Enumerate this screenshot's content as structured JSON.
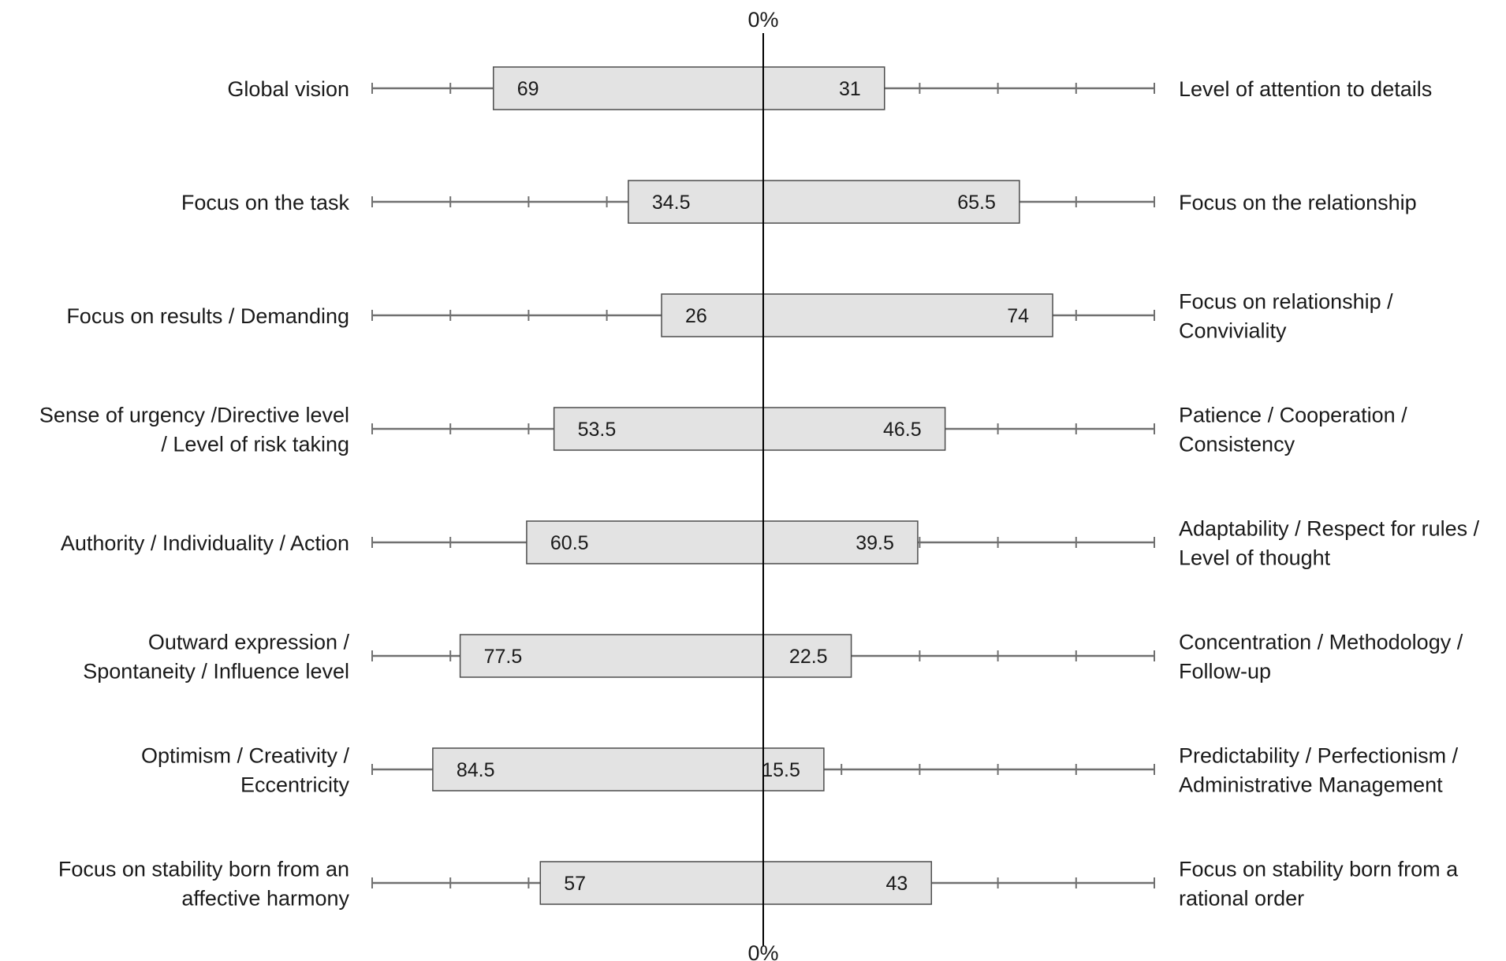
{
  "chart_data": {
    "type": "bar",
    "orientation": "diverging-horizontal",
    "center_label_top": "0%",
    "center_label_bottom": "0%",
    "scale": {
      "min": -100,
      "max": 100,
      "tick_step": 20
    },
    "grid": false,
    "colors": {
      "bar_fill": "#e3e3e3",
      "bar_stroke": "#4d4d4d",
      "axis_line": "#707070",
      "center_line": "#000000",
      "text": "#1a1a1a"
    },
    "rows": [
      {
        "left_label": [
          "Global vision"
        ],
        "right_label": [
          "Level of attention to details"
        ],
        "left_value": 69,
        "right_value": 31,
        "left_text": "69",
        "right_text": "31"
      },
      {
        "left_label": [
          "Focus on the task"
        ],
        "right_label": [
          "Focus on the relationship"
        ],
        "left_value": 34.5,
        "right_value": 65.5,
        "left_text": "34.5",
        "right_text": "65.5"
      },
      {
        "left_label": [
          "Focus on results / Demanding"
        ],
        "right_label": [
          "Focus on relationship /",
          "Conviviality"
        ],
        "left_value": 26,
        "right_value": 74,
        "left_text": "26",
        "right_text": "74"
      },
      {
        "left_label": [
          "Sense of urgency /Directive level",
          "/ Level of risk taking"
        ],
        "right_label": [
          "Patience / Cooperation /",
          "Consistency"
        ],
        "left_value": 53.5,
        "right_value": 46.5,
        "left_text": "53.5",
        "right_text": "46.5"
      },
      {
        "left_label": [
          "Authority / Individuality / Action"
        ],
        "right_label": [
          "Adaptability / Respect for rules /",
          "Level of thought"
        ],
        "left_value": 60.5,
        "right_value": 39.5,
        "left_text": "60.5",
        "right_text": "39.5"
      },
      {
        "left_label": [
          "Outward expression /",
          "Spontaneity / Influence level"
        ],
        "right_label": [
          "Concentration / Methodology /",
          "Follow-up"
        ],
        "left_value": 77.5,
        "right_value": 22.5,
        "left_text": "77.5",
        "right_text": "22.5"
      },
      {
        "left_label": [
          "Optimism / Creativity /",
          "Eccentricity"
        ],
        "right_label": [
          "Predictability / Perfectionism /",
          "Administrative Management"
        ],
        "left_value": 84.5,
        "right_value": 15.5,
        "left_text": "84.5",
        "right_text": "15.5"
      },
      {
        "left_label": [
          "Focus on stability born from an",
          "affective harmony"
        ],
        "right_label": [
          "Focus on stability born from a",
          "rational order"
        ],
        "left_value": 57,
        "right_value": 43,
        "left_text": "57",
        "right_text": "43"
      }
    ]
  }
}
